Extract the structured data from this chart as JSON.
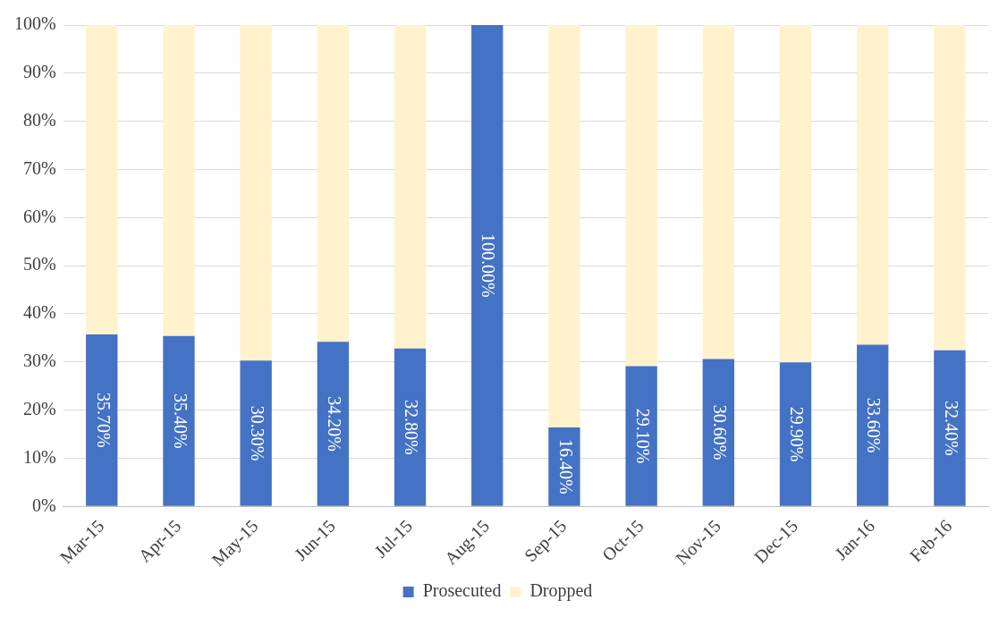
{
  "chart_data": {
    "type": "bar",
    "stacked": true,
    "categories": [
      "Mar-15",
      "Apr-15",
      "May-15",
      "Jun-15",
      "Jul-15",
      "Aug-15",
      "Sep-15",
      "Oct-15",
      "Nov-15",
      "Dec-15",
      "Jan-16",
      "Feb-16"
    ],
    "series": [
      {
        "name": "Prosecuted",
        "color": "#4472c4",
        "values": [
          35.7,
          35.4,
          30.3,
          34.2,
          32.8,
          100,
          16.4,
          29.1,
          30.6,
          29.9,
          33.6,
          32.4
        ],
        "value_labels": [
          "35.70%",
          "35.40%",
          "30.30%",
          "34.20%",
          "32.80%",
          "100.00%",
          "16.40%",
          "29.10%",
          "30.60%",
          "29.90%",
          "33.60%",
          "32.40%"
        ]
      },
      {
        "name": "Dropped",
        "color": "#fff2cc",
        "values": [
          64.3,
          64.6,
          69.7,
          65.8,
          67.2,
          0,
          83.6,
          70.9,
          69.4,
          70.1,
          66.4,
          67.6
        ]
      }
    ],
    "ylim": [
      0,
      100
    ],
    "yticks": [
      {
        "value": 0,
        "label": "0%"
      },
      {
        "value": 10,
        "label": "10%"
      },
      {
        "value": 20,
        "label": "20%"
      },
      {
        "value": 30,
        "label": "30%"
      },
      {
        "value": 40,
        "label": "40%"
      },
      {
        "value": 50,
        "label": "50%"
      },
      {
        "value": 60,
        "label": "60%"
      },
      {
        "value": 70,
        "label": "70%"
      },
      {
        "value": 80,
        "label": "80%"
      },
      {
        "value": 90,
        "label": "90%"
      },
      {
        "value": 100,
        "label": "100%"
      }
    ],
    "grid": "y",
    "legend": "bottom"
  }
}
